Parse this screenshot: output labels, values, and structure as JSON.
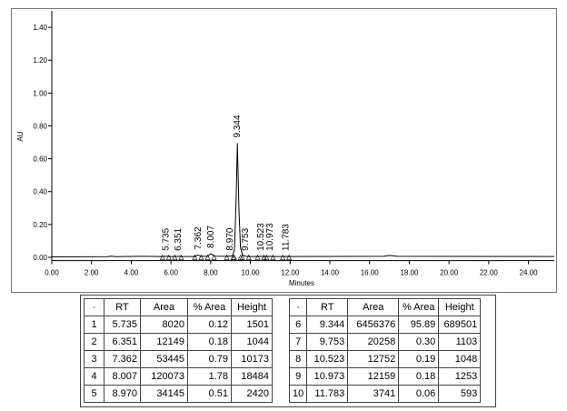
{
  "chart_data": {
    "type": "line",
    "xlabel": "Minutes",
    "ylabel": "AU",
    "xlim": [
      0,
      25.3
    ],
    "ylim": [
      -0.02,
      1.5
    ],
    "xticks": [
      {
        "value": 0,
        "label": "0.00"
      },
      {
        "value": 2,
        "label": "2.00"
      },
      {
        "value": 4,
        "label": "4.00"
      },
      {
        "value": 6,
        "label": "6.00"
      },
      {
        "value": 8,
        "label": "8.00"
      },
      {
        "value": 10,
        "label": "10.00"
      },
      {
        "value": 12,
        "label": "12.00"
      },
      {
        "value": 14,
        "label": "14.00"
      },
      {
        "value": 16,
        "label": "16.00"
      },
      {
        "value": 18,
        "label": "18.00"
      },
      {
        "value": 20,
        "label": "20.00"
      },
      {
        "value": 22,
        "label": "22.00"
      },
      {
        "value": 24,
        "label": "24.00"
      }
    ],
    "yticks": [
      {
        "value": 0,
        "label": "0.00"
      },
      {
        "value": 0.2,
        "label": "0.20"
      },
      {
        "value": 0.4,
        "label": "0.40"
      },
      {
        "value": 0.6,
        "label": "0.60"
      },
      {
        "value": 0.8,
        "label": "0.80"
      },
      {
        "value": 1.0,
        "label": "1.00"
      },
      {
        "value": 1.2,
        "label": "1.20"
      },
      {
        "value": 1.4,
        "label": "1.40"
      }
    ],
    "series": [
      {
        "color": "#000000",
        "x": [
          0,
          2.8,
          3.0,
          3.2,
          4.5,
          5.5,
          5.735,
          5.9,
          6.2,
          6.351,
          6.5,
          7.2,
          7.362,
          7.5,
          7.85,
          8.007,
          8.2,
          8.8,
          8.97,
          9.1,
          9.2,
          9.28,
          9.344,
          9.42,
          9.5,
          9.6,
          9.753,
          9.9,
          10.4,
          10.523,
          10.7,
          10.85,
          10.973,
          11.1,
          11.6,
          11.783,
          11.95,
          16.7,
          17.0,
          17.4,
          25.3
        ],
        "values": [
          0.003,
          0.004,
          0.007,
          0.004,
          0.006,
          0.005,
          0.0065,
          0.005,
          0.005,
          0.006,
          0.005,
          0.005,
          0.014,
          0.006,
          0.006,
          0.022,
          0.007,
          0.006,
          0.0074,
          0.008,
          0.05,
          0.35,
          0.6945,
          0.3,
          0.06,
          0.015,
          0.0061,
          0.005,
          0.005,
          0.006,
          0.005,
          0.005,
          0.0063,
          0.005,
          0.005,
          0.0056,
          0.005,
          0.006,
          0.012,
          0.006,
          0.005
        ]
      }
    ],
    "annotations": [
      5.735,
      6.351,
      7.362,
      8.007,
      {
        "value": 8.97,
        "label": "8.970"
      },
      9.344,
      9.753,
      10.523,
      10.973,
      11.783
    ]
  },
  "table": {
    "left": {
      "header": [
        "◦",
        "RT",
        "Area",
        "% Area",
        "Height"
      ],
      "rows": [
        [
          "1",
          "5.735",
          "8020",
          "0.12",
          "1501"
        ],
        [
          "2",
          "6.351",
          "12149",
          "0.18",
          "1044"
        ],
        [
          "3",
          "7.362",
          "53445",
          "0.79",
          "10173"
        ],
        [
          "4",
          "8.007",
          "120073",
          "1.78",
          "18484"
        ],
        [
          "5",
          "8.970",
          "34145",
          "0.51",
          "2420"
        ]
      ]
    },
    "right": {
      "header": [
        "◦",
        "RT",
        "Area",
        "% Area",
        "Height"
      ],
      "rows": [
        [
          "6",
          "9.344",
          "6456376",
          "95.89",
          "689501"
        ],
        [
          "7",
          "9.753",
          "20258",
          "0.30",
          "1103"
        ],
        [
          "8",
          "10.523",
          "12752",
          "0.19",
          "1048"
        ],
        [
          "9",
          "10.973",
          "12159",
          "0.18",
          "1253"
        ],
        [
          "10",
          "11.783",
          "3741",
          "0.06",
          "593"
        ]
      ]
    }
  }
}
